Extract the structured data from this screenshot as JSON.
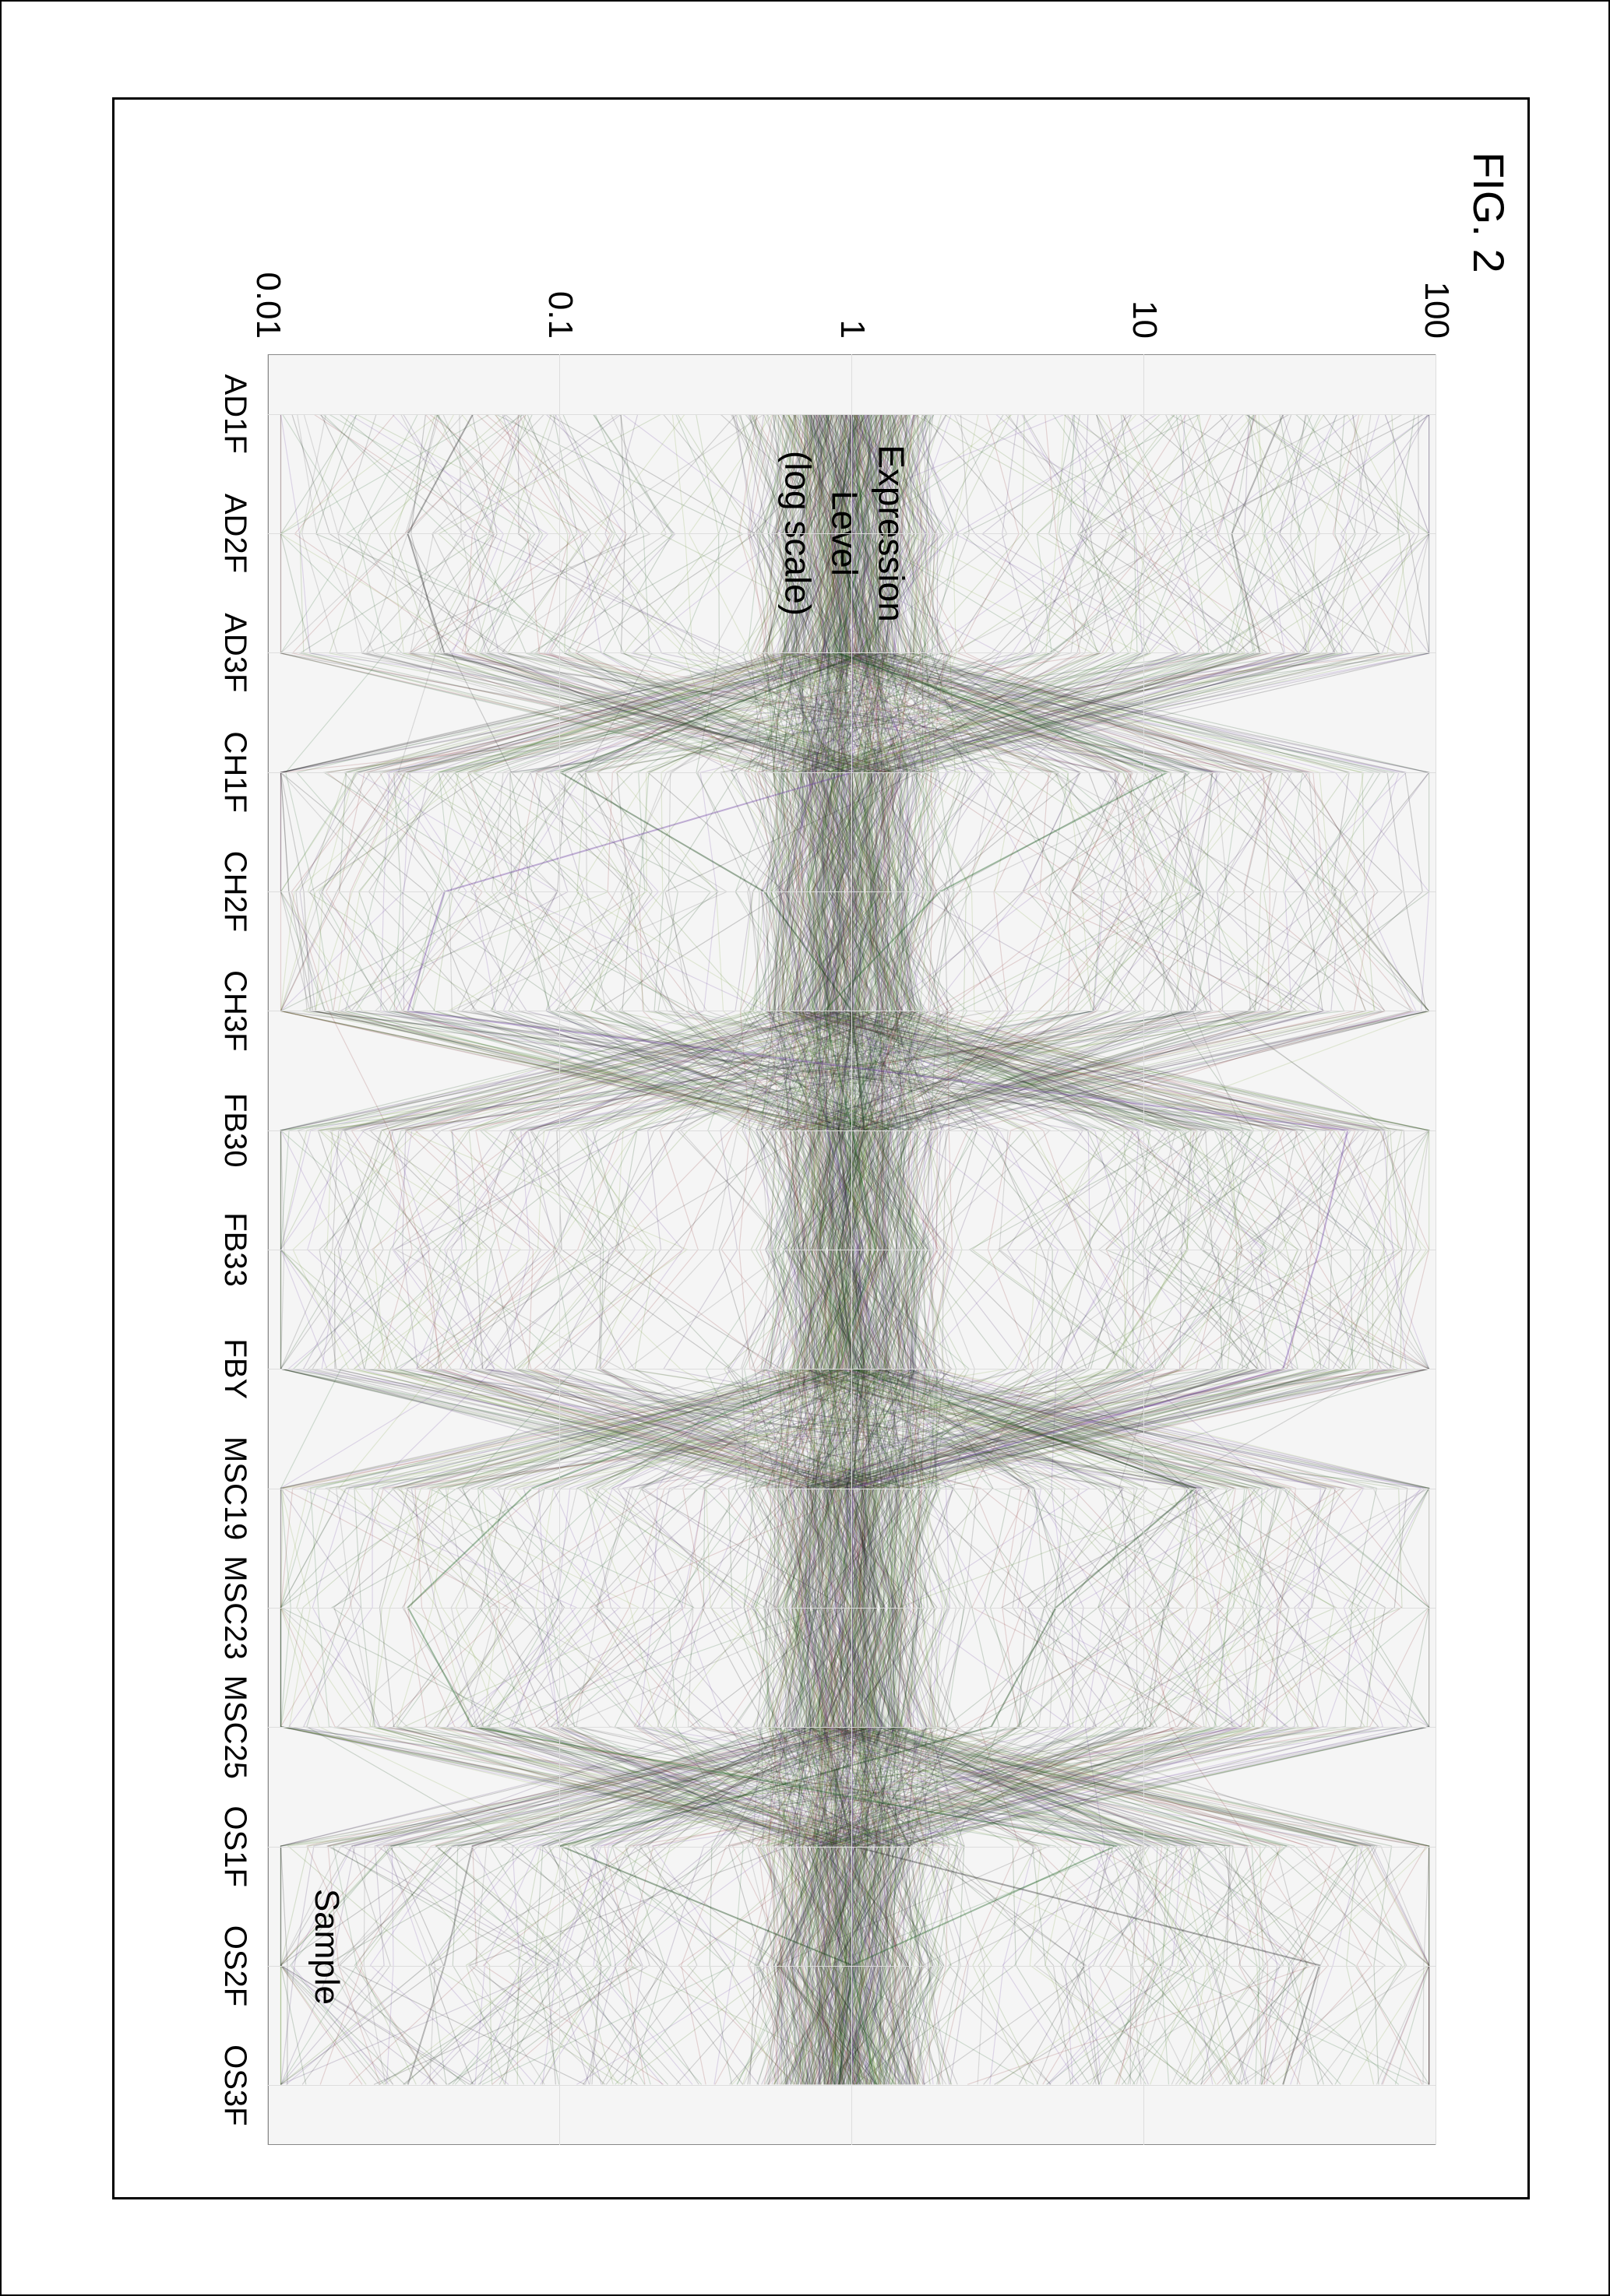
{
  "figure": {
    "title": "FIG. 2",
    "title_fontsize": 56
  },
  "chart": {
    "type": "parallel-coordinates-log",
    "background_color": "#f5f5f5",
    "grid_color": "#dddddd",
    "border_color": "#888888",
    "y_axis": {
      "title": "Expression Level\n(log scale)",
      "title_fontsize": 46,
      "scale": "log",
      "ylim": [
        0.01,
        100
      ],
      "ticks": [
        100,
        10,
        1,
        0.1,
        0.01
      ],
      "tick_labels": [
        "100",
        "10",
        "1",
        "0.1",
        "0.01"
      ],
      "tick_fontsize": 44
    },
    "x_axis": {
      "title": "Sample",
      "title_fontsize": 44,
      "categories": [
        "AD1F",
        "AD2F",
        "AD3F",
        "CH1F",
        "CH2F",
        "CH3F",
        "FB30",
        "FB33",
        "FBY",
        "MSC19",
        "MSC23",
        "MSC25",
        "OS1F",
        "OS2F",
        "OS3F"
      ],
      "tick_fontsize": 40
    },
    "line_style": {
      "stroke_width": 1.2,
      "opacity": 0.18
    },
    "line_colors": [
      "#1b5e20",
      "#0d3b0d",
      "#2f2f2f",
      "#555555",
      "#6b3fa0",
      "#3b1f5e",
      "#8a2e2e",
      "#7aa23a",
      "#4a7a1a",
      "#000000"
    ],
    "num_profiles_hint": 700,
    "density_note": "very dense overlapping polylines; median band concentrated near y=1; spikes and dips most pronounced at CH1F, MSC19-MSC25, OS1F; troughs between groups (AD→CH, CH→FB, FB→MSC, MSC→OS) visually form X patterns",
    "example_profiles": [
      [
        1,
        1.1,
        0.9,
        12,
        2,
        0.8,
        1,
        1.2,
        0.9,
        0.08,
        0.03,
        0.05,
        8,
        1,
        1.2
      ],
      [
        1,
        0.9,
        1.1,
        0.1,
        0.5,
        1,
        1.1,
        0.9,
        1,
        15,
        5,
        3,
        0.1,
        1,
        0.9
      ],
      [
        0.05,
        0.03,
        0.04,
        1,
        1,
        1,
        0.9,
        1,
        1.1,
        1,
        1.2,
        0.8,
        1,
        40,
        30
      ],
      [
        30,
        20,
        25,
        1,
        1,
        1,
        1.1,
        0.9,
        1,
        1,
        1,
        1,
        0.05,
        0.04,
        0.03
      ],
      [
        1,
        1,
        1,
        1,
        0.04,
        0.03,
        50,
        40,
        30,
        1,
        1,
        1,
        1,
        1,
        1
      ]
    ]
  }
}
